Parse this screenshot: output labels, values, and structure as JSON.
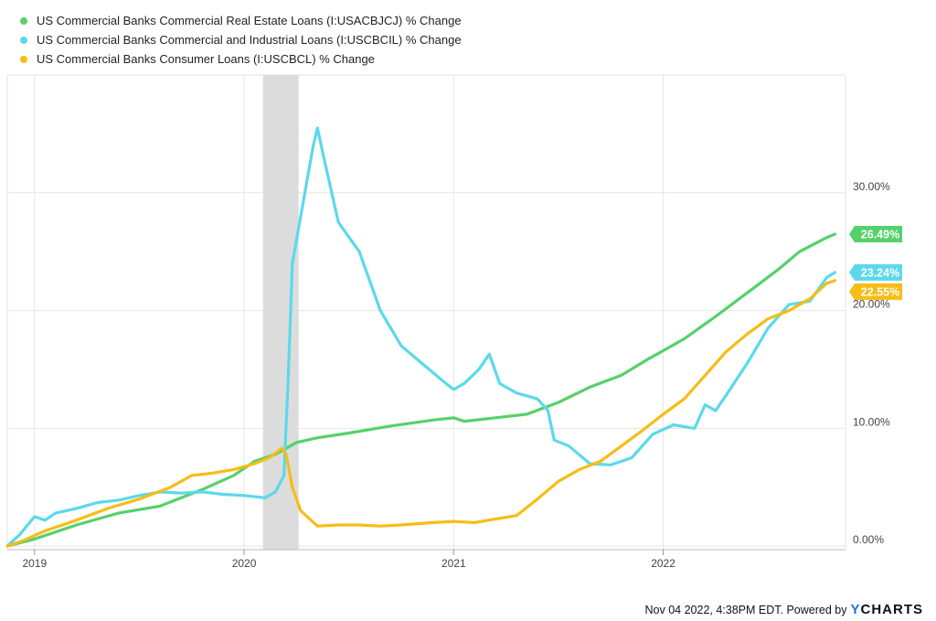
{
  "chart_data": {
    "type": "line",
    "series": [
      {
        "name": "US Commercial Banks Commercial Real Estate Loans (I:USACBJCJ) % Change",
        "color": "#55d16a",
        "last_label": "26.49%",
        "points": [
          [
            2018.87,
            0
          ],
          [
            2019.0,
            0.6
          ],
          [
            2019.2,
            1.8
          ],
          [
            2019.4,
            2.8
          ],
          [
            2019.6,
            3.4
          ],
          [
            2019.8,
            4.8
          ],
          [
            2019.95,
            6.0
          ],
          [
            2020.05,
            7.2
          ],
          [
            2020.15,
            7.8
          ],
          [
            2020.25,
            8.8
          ],
          [
            2020.35,
            9.2
          ],
          [
            2020.5,
            9.6
          ],
          [
            2020.7,
            10.2
          ],
          [
            2020.9,
            10.7
          ],
          [
            2021.0,
            10.9
          ],
          [
            2021.05,
            10.6
          ],
          [
            2021.2,
            10.9
          ],
          [
            2021.35,
            11.2
          ],
          [
            2021.5,
            12.2
          ],
          [
            2021.65,
            13.5
          ],
          [
            2021.8,
            14.5
          ],
          [
            2021.92,
            15.8
          ],
          [
            2022.0,
            16.6
          ],
          [
            2022.1,
            17.6
          ],
          [
            2022.25,
            19.5
          ],
          [
            2022.4,
            21.5
          ],
          [
            2022.55,
            23.5
          ],
          [
            2022.65,
            25.0
          ],
          [
            2022.78,
            26.2
          ],
          [
            2022.82,
            26.49
          ]
        ]
      },
      {
        "name": "US Commercial Banks Commercial and Industrial Loans (I:USCBCIL) % Change",
        "color": "#5bd9ea",
        "last_label": "23.24%",
        "points": [
          [
            2018.87,
            0
          ],
          [
            2018.93,
            1.0
          ],
          [
            2019.0,
            2.5
          ],
          [
            2019.05,
            2.2
          ],
          [
            2019.1,
            2.8
          ],
          [
            2019.2,
            3.2
          ],
          [
            2019.3,
            3.7
          ],
          [
            2019.4,
            3.9
          ],
          [
            2019.5,
            4.3
          ],
          [
            2019.6,
            4.6
          ],
          [
            2019.7,
            4.5
          ],
          [
            2019.8,
            4.6
          ],
          [
            2019.9,
            4.4
          ],
          [
            2020.0,
            4.3
          ],
          [
            2020.1,
            4.1
          ],
          [
            2020.15,
            4.6
          ],
          [
            2020.19,
            6.0
          ],
          [
            2020.21,
            14.0
          ],
          [
            2020.23,
            24.0
          ],
          [
            2020.27,
            28.0
          ],
          [
            2020.3,
            31.0
          ],
          [
            2020.33,
            34.0
          ],
          [
            2020.35,
            35.5
          ],
          [
            2020.38,
            33.0
          ],
          [
            2020.45,
            27.5
          ],
          [
            2020.55,
            25.0
          ],
          [
            2020.65,
            20.0
          ],
          [
            2020.75,
            17.0
          ],
          [
            2020.85,
            15.5
          ],
          [
            2020.95,
            14.0
          ],
          [
            2021.0,
            13.3
          ],
          [
            2021.05,
            13.8
          ],
          [
            2021.12,
            15.0
          ],
          [
            2021.17,
            16.3
          ],
          [
            2021.22,
            13.8
          ],
          [
            2021.3,
            13.0
          ],
          [
            2021.4,
            12.5
          ],
          [
            2021.45,
            11.5
          ],
          [
            2021.48,
            9.0
          ],
          [
            2021.55,
            8.5
          ],
          [
            2021.65,
            7.0
          ],
          [
            2021.75,
            6.9
          ],
          [
            2021.85,
            7.5
          ],
          [
            2021.95,
            9.5
          ],
          [
            2022.05,
            10.3
          ],
          [
            2022.15,
            10.0
          ],
          [
            2022.2,
            12.0
          ],
          [
            2022.25,
            11.5
          ],
          [
            2022.3,
            12.8
          ],
          [
            2022.4,
            15.5
          ],
          [
            2022.5,
            18.5
          ],
          [
            2022.6,
            20.5
          ],
          [
            2022.7,
            20.8
          ],
          [
            2022.78,
            22.8
          ],
          [
            2022.82,
            23.24
          ]
        ]
      },
      {
        "name": "US Commercial Banks Consumer Loans (I:USCBCL) % Change",
        "color": "#f6bd16",
        "last_label": "22.55%",
        "points": [
          [
            2018.87,
            0
          ],
          [
            2018.95,
            0.5
          ],
          [
            2019.05,
            1.3
          ],
          [
            2019.2,
            2.2
          ],
          [
            2019.35,
            3.2
          ],
          [
            2019.5,
            4.0
          ],
          [
            2019.65,
            5.0
          ],
          [
            2019.75,
            6.0
          ],
          [
            2019.85,
            6.2
          ],
          [
            2019.95,
            6.5
          ],
          [
            2020.05,
            7.0
          ],
          [
            2020.12,
            7.5
          ],
          [
            2020.18,
            8.3
          ],
          [
            2020.2,
            7.8
          ],
          [
            2020.23,
            5.0
          ],
          [
            2020.27,
            3.0
          ],
          [
            2020.35,
            1.7
          ],
          [
            2020.45,
            1.8
          ],
          [
            2020.55,
            1.8
          ],
          [
            2020.65,
            1.7
          ],
          [
            2020.75,
            1.8
          ],
          [
            2020.9,
            2.0
          ],
          [
            2021.0,
            2.1
          ],
          [
            2021.1,
            2.0
          ],
          [
            2021.2,
            2.3
          ],
          [
            2021.3,
            2.6
          ],
          [
            2021.4,
            4.0
          ],
          [
            2021.5,
            5.5
          ],
          [
            2021.6,
            6.5
          ],
          [
            2021.7,
            7.2
          ],
          [
            2021.8,
            8.5
          ],
          [
            2021.9,
            9.8
          ],
          [
            2022.0,
            11.2
          ],
          [
            2022.1,
            12.5
          ],
          [
            2022.2,
            14.5
          ],
          [
            2022.3,
            16.5
          ],
          [
            2022.4,
            18.0
          ],
          [
            2022.5,
            19.3
          ],
          [
            2022.6,
            20.0
          ],
          [
            2022.7,
            21.0
          ],
          [
            2022.78,
            22.3
          ],
          [
            2022.82,
            22.55
          ]
        ]
      }
    ],
    "y_ticks": [
      "0.00%",
      "10.00%",
      "20.00%",
      "30.00%"
    ],
    "y_tick_values": [
      0,
      10,
      20,
      30
    ],
    "x_ticks": [
      "2019",
      "2020",
      "2021",
      "2022"
    ],
    "x_tick_values": [
      2019,
      2020,
      2021,
      2022
    ],
    "xlim": [
      2018.87,
      2022.87
    ],
    "ylim": [
      -0.3,
      40
    ],
    "shaded_period": [
      2020.09,
      2020.26
    ],
    "grid": true
  },
  "footer": {
    "text": "Nov 04 2022, 4:38PM EDT. Powered by",
    "brand_y": "Y",
    "brand_rest": "CHARTS"
  }
}
